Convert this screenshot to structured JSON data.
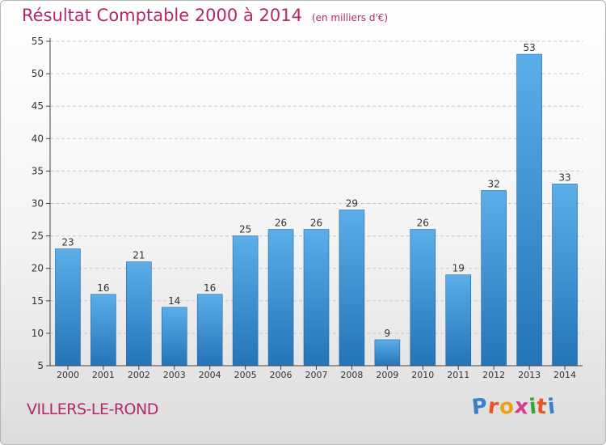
{
  "chart_data": {
    "type": "bar",
    "title": "Résultat Comptable 2000 à 2014",
    "subtitle": "(en milliers d'€)",
    "categories": [
      "2000",
      "2001",
      "2002",
      "2003",
      "2004",
      "2005",
      "2006",
      "2007",
      "2008",
      "2009",
      "2010",
      "2011",
      "2012",
      "2013",
      "2014"
    ],
    "values": [
      23,
      16,
      21,
      14,
      16,
      25,
      26,
      26,
      29,
      9,
      26,
      19,
      32,
      53,
      33
    ],
    "ylim": [
      5,
      55
    ],
    "yticks": [
      5,
      10,
      15,
      20,
      25,
      30,
      35,
      40,
      45,
      50,
      55
    ],
    "grid": true,
    "bar_color": "#3d8fd6"
  },
  "footer": {
    "commune": "VILLERS-LE-ROND",
    "logo_letters": [
      "P",
      "r",
      "o",
      "x",
      "i",
      "t",
      "i"
    ],
    "logo_colors": [
      "#3a80c8",
      "#e8542a",
      "#f0a016",
      "#d63a8a",
      "#3aa63a",
      "#e8542a",
      "#3a80c8"
    ]
  }
}
